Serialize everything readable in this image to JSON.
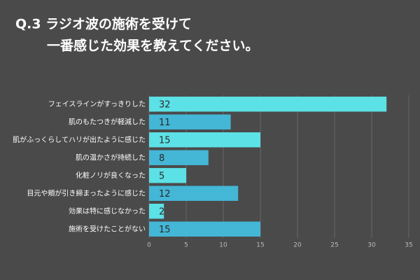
{
  "chart_data": {
    "type": "barh",
    "title": [
      "Q.3 ラジオ波の施術を受けて",
      "一番感じた効果を教えてください。"
    ],
    "categories": [
      "フェイスラインがすっきりした",
      "肌のもたつきが軽減した",
      "肌がふっくらしてハリが出たように感じた",
      "肌の温かさが持続した",
      "化粧ノリが良くなった",
      "目元や頬が引き締まったように感じた",
      "効果は特に感じなかった",
      "施術を受けたことがない"
    ],
    "values": [
      32,
      11,
      15,
      8,
      5,
      12,
      2,
      15
    ],
    "colors": [
      "#5ce1e6",
      "#44b6d6",
      "#5ce1e6",
      "#44b6d6",
      "#5ce1e6",
      "#44b6d6",
      "#5ce1e6",
      "#44b6d6"
    ],
    "xlim": [
      0,
      35
    ],
    "xticks": [
      0,
      5,
      10,
      15,
      20,
      25,
      30,
      35
    ],
    "grid": true
  }
}
